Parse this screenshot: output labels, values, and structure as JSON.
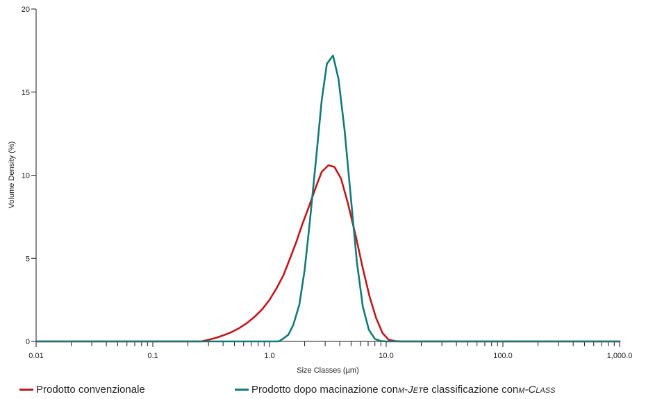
{
  "chart_data": {
    "type": "line",
    "xlabel": "Size Classes (µm)",
    "ylabel": "Volume Density (%)",
    "xscale": "log",
    "xlim": [
      0.01,
      1000
    ],
    "ylim": [
      0,
      20
    ],
    "x_ticks": [
      {
        "value": 0.01,
        "label": "0.01"
      },
      {
        "value": 0.1,
        "label": "0.1"
      },
      {
        "value": 1,
        "label": "1.0"
      },
      {
        "value": 10,
        "label": "10.0"
      },
      {
        "value": 100,
        "label": "100.0"
      },
      {
        "value": 1000,
        "label": "1,000.0"
      }
    ],
    "y_ticks": [
      {
        "value": 0,
        "label": "0"
      },
      {
        "value": 5,
        "label": "5"
      },
      {
        "value": 10,
        "label": "10"
      },
      {
        "value": 15,
        "label": "15"
      },
      {
        "value": 20,
        "label": "20"
      }
    ],
    "grid": false,
    "legend_position": "bottom",
    "series": [
      {
        "name": "Prodotto convenzionale",
        "color": "#c0171c",
        "x": [
          0.01,
          0.26,
          0.3,
          0.35,
          0.4,
          0.47,
          0.55,
          0.64,
          0.75,
          0.87,
          1.0,
          1.15,
          1.32,
          1.5,
          1.7,
          1.9,
          2.2,
          2.5,
          2.8,
          3.2,
          3.6,
          4.1,
          4.7,
          5.5,
          6.3,
          7.2,
          8.2,
          9.3,
          10.5,
          12.0,
          13.5,
          20,
          100,
          1000
        ],
        "y": [
          0,
          0,
          0.1,
          0.22,
          0.36,
          0.55,
          0.8,
          1.1,
          1.5,
          1.95,
          2.5,
          3.2,
          4.0,
          5.0,
          6.0,
          7.0,
          8.2,
          9.3,
          10.2,
          10.6,
          10.5,
          9.8,
          8.3,
          6.3,
          4.4,
          2.7,
          1.4,
          0.5,
          0.1,
          0.02,
          0,
          0,
          0,
          0
        ]
      },
      {
        "name": "Prodotto dopo macinazione con m-Jet e classificazione con m-Class",
        "color": "#137a79",
        "x": [
          0.01,
          1.2,
          1.3,
          1.45,
          1.6,
          1.8,
          2.0,
          2.2,
          2.5,
          2.8,
          3.1,
          3.5,
          3.9,
          4.4,
          5.0,
          5.6,
          6.3,
          7.1,
          8.0,
          9.0,
          10.0,
          20,
          100,
          1000
        ],
        "y": [
          0,
          0,
          0.15,
          0.4,
          1.0,
          2.2,
          4.3,
          7.0,
          10.9,
          14.5,
          16.7,
          17.2,
          15.8,
          12.7,
          8.5,
          4.8,
          2.1,
          0.7,
          0.15,
          0.02,
          0,
          0,
          0,
          0
        ]
      }
    ]
  },
  "legend": {
    "items": [
      {
        "label": "Prodotto convenzionale",
        "color": "#c0171c"
      },
      {
        "label_pre": "Prodotto dopo macinazione con ",
        "label_mjet": "m-Jet",
        "label_mid": " e classificazione con ",
        "label_mclass": "m-Class",
        "color": "#137a79"
      }
    ]
  }
}
